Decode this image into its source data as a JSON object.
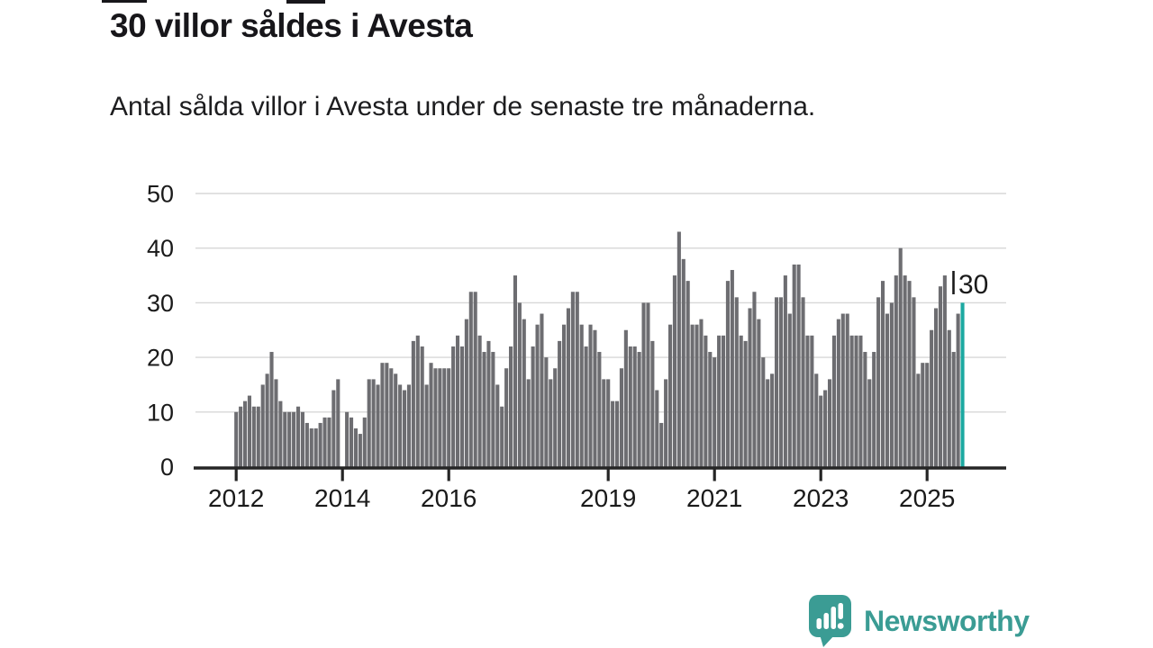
{
  "title": "30 villor såldes i Avesta",
  "subtitle": "Antal sålda villor i Avesta under de senaste tre månaderna.",
  "annotation": {
    "label": "30"
  },
  "branding": {
    "name": "Newsworthy",
    "logo_icon": "newsworthy-speech-bubble-chart-icon"
  },
  "colors": {
    "bar": "#6d6d71",
    "highlight": "#1ca9a1",
    "grid": "#d7d7d7",
    "axis": "#252525",
    "text": "#1a1a1a",
    "brand": "#3b9c94"
  },
  "chart_data": {
    "type": "bar",
    "title": "30 villor såldes i Avesta",
    "subtitle": "Antal sålda villor i Avesta under de senaste tre månaderna.",
    "ylabel": "",
    "xlabel": "",
    "unit": "villor",
    "grid": true,
    "ylim": [
      0,
      50
    ],
    "y_ticks": [
      0,
      10,
      20,
      30,
      40,
      50
    ],
    "x_tick_years": [
      2012,
      2014,
      2016,
      2019,
      2021,
      2023,
      2025
    ],
    "start_month": "2012-01",
    "end_month": "2025-10",
    "frequency": "monthly (rolling 3-month count)",
    "highlight_last": true,
    "highlight_value": 30,
    "series": [
      {
        "name": "Antal sålda villor, rullande tre månader",
        "values": [
          10,
          11,
          12,
          13,
          11,
          11,
          15,
          17,
          21,
          16,
          12,
          10,
          10,
          10,
          11,
          10,
          8,
          7,
          7,
          8,
          9,
          9,
          14,
          16,
          0,
          10,
          9,
          7,
          6,
          9,
          16,
          16,
          15,
          19,
          19,
          18,
          17,
          15,
          14,
          15,
          23,
          24,
          22,
          15,
          19,
          18,
          18,
          18,
          18,
          22,
          24,
          22,
          27,
          32,
          32,
          24,
          21,
          23,
          21,
          15,
          11,
          18,
          22,
          35,
          30,
          27,
          16,
          22,
          26,
          28,
          20,
          16,
          18,
          23,
          26,
          29,
          32,
          32,
          26,
          22,
          26,
          25,
          21,
          16,
          16,
          12,
          12,
          18,
          25,
          22,
          22,
          21,
          30,
          30,
          23,
          14,
          8,
          16,
          26,
          35,
          43,
          38,
          34,
          26,
          26,
          27,
          24,
          21,
          20,
          24,
          24,
          34,
          36,
          31,
          24,
          23,
          29,
          32,
          27,
          20,
          16,
          17,
          31,
          31,
          35,
          28,
          37,
          37,
          31,
          24,
          24,
          17,
          13,
          14,
          16,
          24,
          27,
          28,
          28,
          24,
          24,
          24,
          21,
          16,
          21,
          31,
          34,
          28,
          30,
          35,
          40,
          35,
          34,
          31,
          17,
          19,
          19,
          25,
          29,
          33,
          35,
          25,
          21,
          28,
          30
        ]
      }
    ]
  }
}
